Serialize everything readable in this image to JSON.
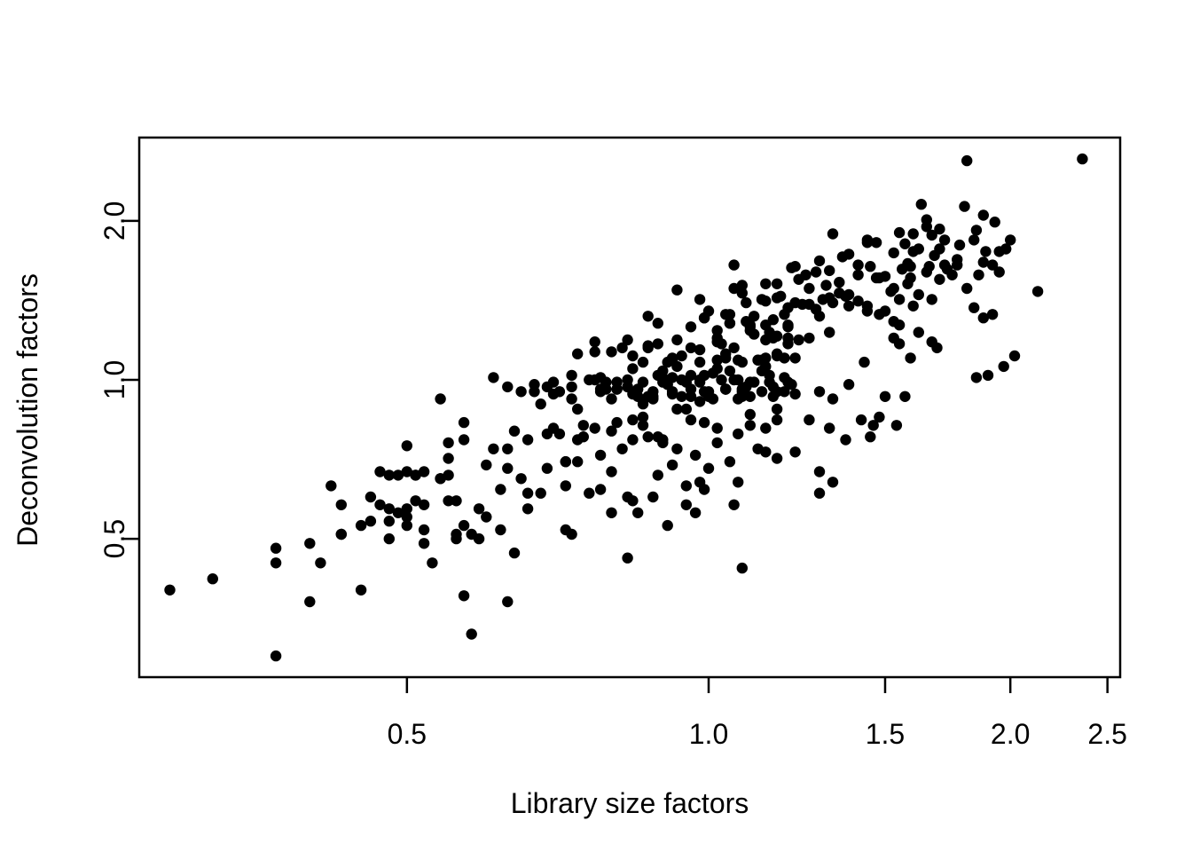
{
  "page": {
    "background": "#ffffff"
  },
  "chart_data": {
    "type": "scatter",
    "title": "",
    "xlabel": "Library size factors",
    "ylabel": "Deconvolution factors",
    "x_scale": "log",
    "y_scale": "log",
    "x_tick_labels": [
      "0.5",
      "1.0",
      "1.5",
      "2.0",
      "2.5"
    ],
    "x_tick_values": [
      0.5,
      1.0,
      1.5,
      2.0,
      2.5
    ],
    "y_tick_labels": [
      "0.5",
      "1.0",
      "2.0"
    ],
    "y_tick_values": [
      0.5,
      1.0,
      2.0
    ],
    "x_range": [
      0.27,
      2.57
    ],
    "y_range": [
      0.27,
      2.88
    ],
    "grid": false,
    "legend": null,
    "point_color": "#000000",
    "axis_color": "#000000",
    "point_radius_px": 6.2,
    "points": [
      [
        0.54,
        0.92
      ],
      [
        1.06,
        1.65
      ],
      [
        1.21,
        1.63
      ],
      [
        0.93,
        1.48
      ],
      [
        0.98,
        1.42
      ],
      [
        1.06,
        1.49
      ],
      [
        1.14,
        1.52
      ],
      [
        1.09,
        1.4
      ],
      [
        1.13,
        1.42
      ],
      [
        1.17,
        1.43
      ],
      [
        0.87,
        1.32
      ],
      [
        0.89,
        1.28
      ],
      [
        0.96,
        1.26
      ],
      [
        0.99,
        1.31
      ],
      [
        1.0,
        1.35
      ],
      [
        1.02,
        1.24
      ],
      [
        1.04,
        1.33
      ],
      [
        1.05,
        1.28
      ],
      [
        1.09,
        1.29
      ],
      [
        1.1,
        1.24
      ],
      [
        1.15,
        1.23
      ],
      [
        1.16,
        1.3
      ],
      [
        1.19,
        1.33
      ],
      [
        0.77,
        1.18
      ],
      [
        0.83,
        1.19
      ],
      [
        0.87,
        1.15
      ],
      [
        0.89,
        1.17
      ],
      [
        0.92,
        1.1
      ],
      [
        0.74,
        1.12
      ],
      [
        0.77,
        1.13
      ],
      [
        0.8,
        1.13
      ],
      [
        0.82,
        1.15
      ],
      [
        0.84,
        1.11
      ],
      [
        0.86,
        1.08
      ],
      [
        0.91,
        1.08
      ],
      [
        0.94,
        1.11
      ],
      [
        0.98,
        1.14
      ],
      [
        1.02,
        1.09
      ],
      [
        1.03,
        1.17
      ],
      [
        1.04,
        1.1
      ],
      [
        1.07,
        1.09
      ],
      [
        1.12,
        1.09
      ],
      [
        1.14,
        1.1
      ],
      [
        1.17,
        1.12
      ],
      [
        1.19,
        1.1
      ],
      [
        1.2,
        1.17
      ],
      [
        0.61,
        1.01
      ],
      [
        0.63,
        0.97
      ],
      [
        0.65,
        0.95
      ],
      [
        0.67,
        0.98
      ],
      [
        0.67,
        0.95
      ],
      [
        0.7,
        0.99
      ],
      [
        0.7,
        0.94
      ],
      [
        0.73,
        1.02
      ],
      [
        0.73,
        0.97
      ],
      [
        0.76,
        1.0
      ],
      [
        0.78,
        0.96
      ],
      [
        0.79,
        0.99
      ],
      [
        0.81,
        0.96
      ],
      [
        0.83,
        1.0
      ],
      [
        0.85,
        0.96
      ],
      [
        0.86,
        0.99
      ],
      [
        0.88,
        0.95
      ],
      [
        0.9,
        0.99
      ],
      [
        0.92,
        0.95
      ],
      [
        0.94,
        1.0
      ],
      [
        0.96,
        0.96
      ],
      [
        0.98,
        0.99
      ],
      [
        1.0,
        0.95
      ],
      [
        1.04,
        0.96
      ],
      [
        1.06,
        1.0
      ],
      [
        1.08,
        0.96
      ],
      [
        1.1,
        0.99
      ],
      [
        1.13,
        0.95
      ],
      [
        1.15,
        0.99
      ],
      [
        1.17,
        0.95
      ],
      [
        1.2,
        0.99
      ],
      [
        1.81,
        2.6
      ],
      [
        2.36,
        2.62
      ],
      [
        1.63,
        2.15
      ],
      [
        1.8,
        2.13
      ],
      [
        1.88,
        2.05
      ],
      [
        1.33,
        1.89
      ],
      [
        1.65,
        1.95
      ],
      [
        1.7,
        1.93
      ],
      [
        1.67,
        1.88
      ],
      [
        1.72,
        1.84
      ],
      [
        1.44,
        1.82
      ],
      [
        1.47,
        1.82
      ],
      [
        1.57,
        1.81
      ],
      [
        1.84,
        1.84
      ],
      [
        1.89,
        1.75
      ],
      [
        1.95,
        1.75
      ],
      [
        1.36,
        1.71
      ],
      [
        1.7,
        1.77
      ],
      [
        1.77,
        1.69
      ],
      [
        1.88,
        1.67
      ],
      [
        1.92,
        1.65
      ],
      [
        1.22,
        1.64
      ],
      [
        1.25,
        1.58
      ],
      [
        1.28,
        1.6
      ],
      [
        1.31,
        1.51
      ],
      [
        1.45,
        1.64
      ],
      [
        1.5,
        1.57
      ],
      [
        1.53,
        1.49
      ],
      [
        1.58,
        1.66
      ],
      [
        1.59,
        1.64
      ],
      [
        1.66,
        1.64
      ],
      [
        1.72,
        1.65
      ],
      [
        1.77,
        1.65
      ],
      [
        1.81,
        1.49
      ],
      [
        2.13,
        1.47
      ],
      [
        1.67,
        1.42
      ],
      [
        1.84,
        1.37
      ],
      [
        1.88,
        1.31
      ],
      [
        1.92,
        1.33
      ],
      [
        1.3,
        1.42
      ],
      [
        1.33,
        1.4
      ],
      [
        1.38,
        1.45
      ],
      [
        1.41,
        1.41
      ],
      [
        1.44,
        1.35
      ],
      [
        1.48,
        1.33
      ],
      [
        1.53,
        1.29
      ],
      [
        1.55,
        1.27
      ],
      [
        1.6,
        1.38
      ],
      [
        1.62,
        1.23
      ],
      [
        1.53,
        1.2
      ],
      [
        1.55,
        1.17
      ],
      [
        1.59,
        1.1
      ],
      [
        1.67,
        1.18
      ],
      [
        1.69,
        1.15
      ],
      [
        2.02,
        1.11
      ],
      [
        1.97,
        1.06
      ],
      [
        1.9,
        1.02
      ],
      [
        1.85,
        1.01
      ],
      [
        1.29,
        0.95
      ],
      [
        1.33,
        0.92
      ],
      [
        1.38,
        0.98
      ],
      [
        1.43,
        1.08
      ],
      [
        1.5,
        0.93
      ],
      [
        1.57,
        0.93
      ],
      [
        0.57,
        0.83
      ],
      [
        0.5,
        0.75
      ],
      [
        0.55,
        0.76
      ],
      [
        0.55,
        0.71
      ],
      [
        0.47,
        0.67
      ],
      [
        0.48,
        0.66
      ],
      [
        0.49,
        0.66
      ],
      [
        0.5,
        0.67
      ],
      [
        0.51,
        0.66
      ],
      [
        0.52,
        0.67
      ],
      [
        0.54,
        0.65
      ],
      [
        0.55,
        0.66
      ],
      [
        0.42,
        0.63
      ],
      [
        0.46,
        0.6
      ],
      [
        0.47,
        0.58
      ],
      [
        0.48,
        0.57
      ],
      [
        0.48,
        0.54
      ],
      [
        0.49,
        0.56
      ],
      [
        0.5,
        0.53
      ],
      [
        0.5,
        0.57
      ],
      [
        0.51,
        0.59
      ],
      [
        0.52,
        0.58
      ],
      [
        0.46,
        0.54
      ],
      [
        0.43,
        0.58
      ],
      [
        0.43,
        0.51
      ],
      [
        0.45,
        0.53
      ],
      [
        0.52,
        0.52
      ],
      [
        0.56,
        0.51
      ],
      [
        0.56,
        0.5
      ],
      [
        0.48,
        0.5
      ],
      [
        0.37,
        0.48
      ],
      [
        0.4,
        0.49
      ],
      [
        0.37,
        0.45
      ],
      [
        0.41,
        0.45
      ],
      [
        0.43,
        0.51
      ],
      [
        0.32,
        0.42
      ],
      [
        0.29,
        0.4
      ],
      [
        0.45,
        0.4
      ],
      [
        0.4,
        0.38
      ],
      [
        0.57,
        0.39
      ],
      [
        0.37,
        0.3
      ],
      [
        0.64,
        0.47
      ],
      [
        0.83,
        0.46
      ],
      [
        1.08,
        0.44
      ],
      [
        0.63,
        0.38
      ],
      [
        0.58,
        0.33
      ],
      [
        0.59,
        0.5
      ],
      [
        0.57,
        0.53
      ],
      [
        0.72,
        0.52
      ],
      [
        0.73,
        0.51
      ],
      [
        0.8,
        0.56
      ],
      [
        0.85,
        0.56
      ],
      [
        0.91,
        0.53
      ],
      [
        0.88,
        0.6
      ],
      [
        0.83,
        0.6
      ],
      [
        0.84,
        0.59
      ],
      [
        0.98,
        0.64
      ],
      [
        0.99,
        0.62
      ],
      [
        0.95,
        0.58
      ],
      [
        0.97,
        0.56
      ],
      [
        1.06,
        0.58
      ],
      [
        1.07,
        0.64
      ],
      [
        1.14,
        0.73
      ],
      [
        1.17,
        0.71
      ],
      [
        1.14,
        0.81
      ],
      [
        1.17,
        0.84
      ],
      [
        1.1,
        0.86
      ],
      [
        1.26,
        0.84
      ],
      [
        1.32,
        0.81
      ],
      [
        1.42,
        0.84
      ],
      [
        1.48,
        0.85
      ],
      [
        1.46,
        0.82
      ],
      [
        1.54,
        0.82
      ],
      [
        1.37,
        0.77
      ],
      [
        1.45,
        0.78
      ],
      [
        1.22,
        0.73
      ],
      [
        1.29,
        0.67
      ],
      [
        1.33,
        0.64
      ],
      [
        1.29,
        0.61
      ],
      [
        0.6,
        0.55
      ],
      [
        0.63,
        0.68
      ],
      [
        0.66,
        0.57
      ],
      [
        0.69,
        0.79
      ],
      [
        0.72,
        0.7
      ],
      [
        0.75,
        0.78
      ],
      [
        0.78,
        0.62
      ],
      [
        0.81,
        0.99
      ],
      [
        0.84,
        0.84
      ],
      [
        0.87,
        0.78
      ],
      [
        0.9,
        1.01
      ],
      [
        0.93,
        0.88
      ],
      [
        0.96,
        1.02
      ],
      [
        0.99,
        0.83
      ],
      [
        1.02,
        1.2
      ],
      [
        1.05,
        1.04
      ],
      [
        1.08,
        0.95
      ],
      [
        1.11,
        1.22
      ],
      [
        1.14,
        1.06
      ],
      [
        1.17,
        1.21
      ],
      [
        0.61,
        0.74
      ],
      [
        0.65,
        0.65
      ],
      [
        0.68,
        0.61
      ],
      [
        0.71,
        0.79
      ],
      [
        0.74,
        0.7
      ],
      [
        0.77,
        0.81
      ],
      [
        0.8,
        0.67
      ],
      [
        0.83,
        0.97
      ],
      [
        0.86,
        0.85
      ],
      [
        0.89,
        0.78
      ],
      [
        0.92,
        1.01
      ],
      [
        0.95,
        0.88
      ],
      [
        0.98,
        1.0
      ],
      [
        1.01,
        0.92
      ],
      [
        1.04,
        1.12
      ],
      [
        1.07,
        0.92
      ],
      [
        1.1,
        1.26
      ],
      [
        1.13,
        1.09
      ],
      [
        1.16,
        1.2
      ],
      [
        1.19,
        0.95
      ],
      [
        0.62,
        0.52
      ],
      [
        0.66,
        0.77
      ],
      [
        0.69,
        0.68
      ],
      [
        0.72,
        0.63
      ],
      [
        0.75,
        0.82
      ],
      [
        0.78,
        0.72
      ],
      [
        0.81,
        0.83
      ],
      [
        0.84,
        0.77
      ],
      [
        0.87,
        0.93
      ],
      [
        0.9,
        0.77
      ],
      [
        0.93,
        1.06
      ],
      [
        0.96,
        0.93
      ],
      [
        0.99,
        1.02
      ],
      [
        1.02,
        0.81
      ],
      [
        1.05,
        1.28
      ],
      [
        1.08,
        1.08
      ],
      [
        1.11,
        0.99
      ],
      [
        1.14,
        1.27
      ],
      [
        1.17,
        1.11
      ],
      [
        1.2,
        1.27
      ],
      [
        0.7,
        0.81
      ],
      [
        0.72,
        0.7
      ],
      [
        0.74,
        0.77
      ],
      [
        0.76,
        0.61
      ],
      [
        0.78,
        0.95
      ],
      [
        0.8,
        0.8
      ],
      [
        0.82,
        0.74
      ],
      [
        0.84,
        0.94
      ],
      [
        0.86,
        0.82
      ],
      [
        0.88,
        0.93
      ],
      [
        0.9,
        0.76
      ],
      [
        0.92,
        1.09
      ],
      [
        0.94,
        0.93
      ],
      [
        0.96,
        0.84
      ],
      [
        0.98,
        1.08
      ],
      [
        1.0,
        0.93
      ],
      [
        1.02,
        1.05
      ],
      [
        1.04,
        0.96
      ],
      [
        1.06,
        1.15
      ],
      [
        1.08,
        0.93
      ],
      [
        1.1,
        1.27
      ],
      [
        1.12,
        1.09
      ],
      [
        1.14,
        1.19
      ],
      [
        1.16,
        0.93
      ],
      [
        1.18,
        1.44
      ],
      [
        1.2,
        1.2
      ],
      [
        1.22,
        1.1
      ],
      [
        1.24,
        1.39
      ],
      [
        1.26,
        1.2
      ],
      [
        1.28,
        1.36
      ],
      [
        0.78,
        1.01
      ],
      [
        0.81,
        0.96
      ],
      [
        0.84,
        1.05
      ],
      [
        0.87,
        1.16
      ],
      [
        0.9,
        1.04
      ],
      [
        0.93,
        1.19
      ],
      [
        0.96,
        1.15
      ],
      [
        0.99,
        1.31
      ],
      [
        1.02,
        1.18
      ],
      [
        1.05,
        1.33
      ],
      [
        1.08,
        1.46
      ],
      [
        1.11,
        1.32
      ],
      [
        1.14,
        1.41
      ],
      [
        1.17,
        1.52
      ],
      [
        1.2,
        1.37
      ],
      [
        1.23,
        1.55
      ],
      [
        1.26,
        1.49
      ],
      [
        1.29,
        1.68
      ],
      [
        1.32,
        1.61
      ],
      [
        1.35,
        1.53
      ],
      [
        1.38,
        1.73
      ],
      [
        1.41,
        1.65
      ],
      [
        1.44,
        1.84
      ],
      [
        1.32,
        1.43
      ],
      [
        1.08,
        1.51
      ],
      [
        1.2,
        1.26
      ],
      [
        1.23,
        1.19
      ],
      [
        1.26,
        1.39
      ],
      [
        1.29,
        1.32
      ],
      [
        1.32,
        1.23
      ],
      [
        1.35,
        1.46
      ],
      [
        1.38,
        1.38
      ],
      [
        1.41,
        1.58
      ],
      [
        1.44,
        1.38
      ],
      [
        1.47,
        1.56
      ],
      [
        1.5,
        1.35
      ],
      [
        1.53,
        1.74
      ],
      [
        1.56,
        1.62
      ],
      [
        1.59,
        1.56
      ],
      [
        1.62,
        1.77
      ],
      [
        1.65,
        2.01
      ],
      [
        1.22,
        1.4
      ],
      [
        1.37,
        1.44
      ],
      [
        1.52,
        1.47
      ],
      [
        1.6,
        1.89
      ],
      [
        0.5,
        0.55
      ],
      [
        0.52,
        0.49
      ],
      [
        0.54,
        0.65
      ],
      [
        0.56,
        0.59
      ],
      [
        0.58,
        0.51
      ],
      [
        0.6,
        0.69
      ],
      [
        0.62,
        0.62
      ],
      [
        0.64,
        0.8
      ],
      [
        0.66,
        0.61
      ],
      [
        0.51,
        0.66
      ],
      [
        0.55,
        0.59
      ],
      [
        0.59,
        0.57
      ],
      [
        0.63,
        0.74
      ],
      [
        0.57,
        0.77
      ],
      [
        0.53,
        0.45
      ],
      [
        0.92,
        0.69
      ],
      [
        0.97,
        0.72
      ],
      [
        1.02,
        0.76
      ],
      [
        1.07,
        0.79
      ],
      [
        1.12,
        0.74
      ],
      [
        1.17,
        0.88
      ],
      [
        1.0,
        0.68
      ],
      [
        0.95,
        0.63
      ],
      [
        1.05,
        0.7
      ],
      [
        1.1,
        0.82
      ],
      [
        0.89,
        0.66
      ],
      [
        0.93,
        0.74
      ],
      [
        1.55,
        1.9
      ],
      [
        1.6,
        1.75
      ],
      [
        1.65,
        1.6
      ],
      [
        1.7,
        1.55
      ],
      [
        1.75,
        1.58
      ],
      [
        1.62,
        1.45
      ],
      [
        1.68,
        1.72
      ],
      [
        1.58,
        1.52
      ],
      [
        1.73,
        1.62
      ],
      [
        1.78,
        1.8
      ],
      [
        1.55,
        1.42
      ],
      [
        1.48,
        1.56
      ],
      [
        2.0,
        1.84
      ],
      [
        1.93,
        1.99
      ],
      [
        1.85,
        1.92
      ],
      [
        1.95,
        1.6
      ],
      [
        1.98,
        1.77
      ],
      [
        1.86,
        1.58
      ],
      [
        0.68,
        0.9
      ],
      [
        0.71,
        0.95
      ],
      [
        0.74,
        0.88
      ],
      [
        0.77,
        1.0
      ],
      [
        0.8,
        0.92
      ],
      [
        0.83,
        0.97
      ],
      [
        0.86,
        0.9
      ],
      [
        0.89,
        1.02
      ],
      [
        0.92,
        0.94
      ],
      [
        0.95,
        0.99
      ],
      [
        0.98,
        0.91
      ],
      [
        1.01,
        1.03
      ],
      [
        1.04,
        0.96
      ],
      [
        1.07,
        1.0
      ],
      [
        1.1,
        0.93
      ],
      [
        1.13,
        1.04
      ],
      [
        1.16,
        0.97
      ],
      [
        1.19,
        1.01
      ],
      [
        1.22,
        0.94
      ],
      [
        0.69,
        0.97
      ],
      [
        0.73,
        0.92
      ],
      [
        0.79,
        0.96
      ],
      [
        0.85,
        0.93
      ],
      [
        0.91,
        0.98
      ],
      [
        0.99,
        0.95
      ],
      [
        1.03,
        1.0
      ],
      [
        1.09,
        0.97
      ],
      [
        1.15,
        1.02
      ],
      [
        1.21,
        0.98
      ],
      [
        0.88,
        0.92
      ]
    ]
  }
}
